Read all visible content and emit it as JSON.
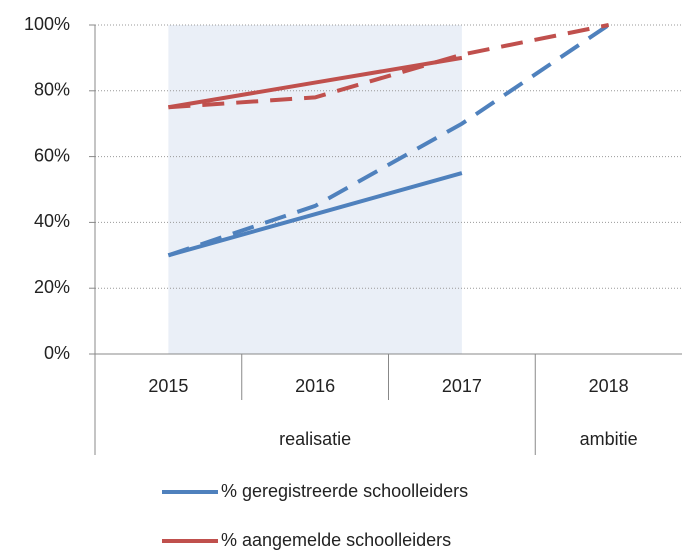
{
  "chart_data": {
    "type": "line",
    "categories": [
      "2015",
      "2016",
      "2017",
      "2018"
    ],
    "groups": [
      {
        "label": "realisatie",
        "span": 3
      },
      {
        "label": "ambitie",
        "span": 1
      }
    ],
    "series": [
      {
        "name": "% geregistreerde schoolleiders",
        "color": "#4f81bd",
        "values": [
          30,
          42.5,
          55,
          null
        ]
      },
      {
        "name": "% aangemelde schoolleiders",
        "color": "#c0504d",
        "values": [
          75,
          82.5,
          90,
          null
        ]
      },
      {
        "color": "#4f81bd",
        "dashed": true,
        "values": [
          30,
          45,
          70,
          100
        ]
      },
      {
        "color": "#c0504d",
        "dashed": true,
        "values": [
          75,
          78,
          91,
          100
        ]
      }
    ],
    "ylim": [
      0,
      100
    ],
    "yticks": [
      {
        "value": 0,
        "label": "0%"
      },
      {
        "value": 20,
        "label": "20%"
      },
      {
        "value": 40,
        "label": "40%"
      },
      {
        "value": 60,
        "label": "60%"
      },
      {
        "value": 80,
        "label": "80%"
      },
      {
        "value": 100,
        "label": "100%"
      }
    ],
    "grid": true
  }
}
